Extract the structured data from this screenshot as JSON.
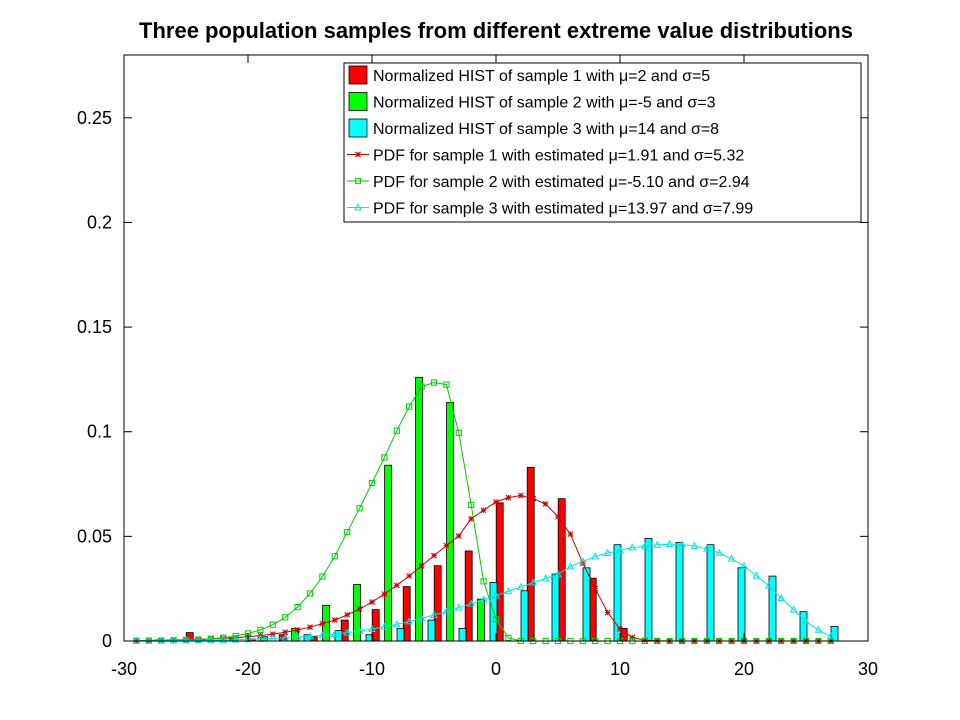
{
  "chart_data": {
    "type": "bar",
    "title": "Three population samples from different extreme value distributions",
    "xlabel": "",
    "ylabel": "",
    "xlim": [
      -30,
      30
    ],
    "ylim": [
      0,
      0.28
    ],
    "x_ticks": [
      -30,
      -20,
      -10,
      0,
      10,
      20,
      30
    ],
    "x_tick_labels": [
      "-30",
      "-20",
      "-10",
      "0",
      "10",
      "20",
      "30"
    ],
    "y_ticks": [
      0,
      0.05,
      0.1,
      0.15,
      0.2,
      0.25
    ],
    "y_tick_labels": [
      "0",
      "0.05",
      "0.1",
      "0.15",
      "0.2",
      "0.25"
    ],
    "grid": false,
    "legend_position": "top-right",
    "histograms": [
      {
        "name": "Normalized HIST of sample 1 with μ=2 and σ=5",
        "color": "#ff0000",
        "x": [
          -27.2,
          -24.7,
          -22.2,
          -19.7,
          -17.2,
          -14.7,
          -12.2,
          -9.7,
          -7.2,
          -4.7,
          -2.2,
          0.3,
          2.8,
          5.3,
          7.8,
          10.3
        ],
        "values": [
          0.0005,
          0.004,
          0.0005,
          0.001,
          0.003,
          0.002,
          0.01,
          0.015,
          0.026,
          0.036,
          0.043,
          0.066,
          0.083,
          0.068,
          0.03,
          0.006
        ]
      },
      {
        "name": "Normalized HIST of sample 2 with μ=-5 and σ=3",
        "color": "#00ff00",
        "x": [
          -26.2,
          -23.7,
          -21.2,
          -18.7,
          -16.2,
          -13.7,
          -11.2,
          -8.7,
          -6.2,
          -3.7,
          -1.2
        ],
        "values": [
          0.0005,
          0.0005,
          0.001,
          0.002,
          0.006,
          0.017,
          0.027,
          0.084,
          0.126,
          0.114,
          0.02
        ]
      },
      {
        "name": "Normalized HIST of sample 3 with μ=14 and σ=8",
        "color": "#00ffff",
        "x": [
          -15.2,
          -12.7,
          -10.2,
          -7.7,
          -5.2,
          -2.7,
          -0.2,
          2.3,
          4.8,
          7.3,
          9.8,
          12.3,
          14.8,
          17.3,
          19.8,
          22.3,
          24.8,
          27.3
        ],
        "values": [
          0.003,
          0.005,
          0.003,
          0.006,
          0.01,
          0.006,
          0.028,
          0.024,
          0.032,
          0.035,
          0.046,
          0.049,
          0.047,
          0.046,
          0.035,
          0.031,
          0.014,
          0.007
        ]
      }
    ],
    "series": [
      {
        "name": "PDF for sample 1 with estimated μ=1.91 and σ=5.32",
        "color": "#cc0000",
        "marker": "star",
        "x": [
          -29,
          -28,
          -27,
          -26,
          -25,
          -24,
          -23,
          -22,
          -21,
          -20,
          -19,
          -18,
          -17,
          -16,
          -15,
          -14,
          -13,
          -12,
          -11,
          -10,
          -9,
          -8,
          -7,
          -6,
          -5,
          -4,
          -3,
          -2,
          -1,
          0,
          1,
          2,
          3,
          4,
          5,
          6,
          7,
          8,
          9,
          10,
          11,
          12,
          13,
          14,
          15,
          16,
          17,
          18,
          19,
          20,
          21,
          22,
          23,
          24,
          25,
          26,
          27
        ],
        "values": [
          0.0002,
          0.0003,
          0.0004,
          0.0005,
          0.0006,
          0.0008,
          0.001,
          0.0013,
          0.0016,
          0.002,
          0.0026,
          0.0033,
          0.0042,
          0.0053,
          0.0066,
          0.0083,
          0.01,
          0.0125,
          0.0153,
          0.0186,
          0.0224,
          0.0266,
          0.0311,
          0.0359,
          0.0408,
          0.0456,
          0.0502,
          0.0584,
          0.0625,
          0.0664,
          0.0685,
          0.0695,
          0.068,
          0.0655,
          0.0594,
          0.0511,
          0.0372,
          0.025,
          0.0136,
          0.0057,
          0.0017,
          0.0004,
          0.0001,
          0,
          0,
          0,
          0,
          0,
          0,
          0,
          0,
          0,
          0,
          0,
          0,
          0,
          0
        ]
      },
      {
        "name": "PDF for sample 2 with estimated μ=-5.10 and σ=2.94",
        "color": "#00cc00",
        "marker": "square",
        "x": [
          -29,
          -28,
          -27,
          -26,
          -25,
          -24,
          -23,
          -22,
          -21,
          -20,
          -19,
          -18,
          -17,
          -16,
          -15,
          -14,
          -13,
          -12,
          -11,
          -10,
          -9,
          -8,
          -7,
          -6,
          -5,
          -4,
          -3,
          -2,
          -1,
          0,
          1,
          2,
          3,
          4,
          5,
          6,
          7,
          8,
          9,
          10,
          11,
          12,
          13,
          14,
          15,
          16,
          17,
          18,
          19,
          20,
          21,
          22,
          23,
          24,
          25,
          26,
          27
        ],
        "values": [
          0.0001,
          0.0001,
          0.0002,
          0.0003,
          0.0005,
          0.0007,
          0.0011,
          0.0016,
          0.0024,
          0.0036,
          0.0053,
          0.0078,
          0.0113,
          0.0162,
          0.0227,
          0.0308,
          0.0405,
          0.052,
          0.0634,
          0.0755,
          0.0877,
          0.1005,
          0.112,
          0.1215,
          0.1235,
          0.1225,
          0.0995,
          0.065,
          0.0285,
          0.0105,
          0.0015,
          0,
          0,
          0,
          0,
          0,
          0,
          0,
          0,
          0,
          0,
          0,
          0,
          0,
          0,
          0,
          0,
          0,
          0,
          0,
          0,
          0,
          0,
          0,
          0,
          0,
          0
        ]
      },
      {
        "name": "PDF for sample 3 with estimated μ=13.97 and σ=7.99",
        "color": "#00e5e5",
        "marker": "triangle",
        "x": [
          -29,
          -28,
          -27,
          -26,
          -25,
          -24,
          -23,
          -22,
          -21,
          -20,
          -19,
          -18,
          -17,
          -16,
          -15,
          -14,
          -13,
          -12,
          -11,
          -10,
          -9,
          -8,
          -7,
          -6,
          -5,
          -4,
          -3,
          -2,
          -1,
          0,
          1,
          2,
          3,
          4,
          5,
          6,
          7,
          8,
          9,
          10,
          11,
          12,
          13,
          14,
          15,
          16,
          17,
          18,
          19,
          20,
          21,
          22,
          23,
          24,
          25,
          26,
          27
        ],
        "values": [
          0.0001,
          0.0001,
          0.0002,
          0.0002,
          0.0003,
          0.0003,
          0.0004,
          0.0005,
          0.0006,
          0.0008,
          0.001,
          0.0012,
          0.0015,
          0.0018,
          0.0022,
          0.0027,
          0.0033,
          0.004,
          0.0048,
          0.0057,
          0.0068,
          0.008,
          0.0093,
          0.0108,
          0.0124,
          0.0141,
          0.0159,
          0.0178,
          0.0197,
          0.0217,
          0.0237,
          0.0258,
          0.0279,
          0.0299,
          0.0318,
          0.0356,
          0.0381,
          0.0403,
          0.042,
          0.0433,
          0.0447,
          0.0452,
          0.0459,
          0.0463,
          0.0461,
          0.0454,
          0.0441,
          0.0421,
          0.0393,
          0.0358,
          0.0312,
          0.0264,
          0.0205,
          0.015,
          0.0093,
          0.0053,
          0.0022
        ]
      }
    ]
  }
}
